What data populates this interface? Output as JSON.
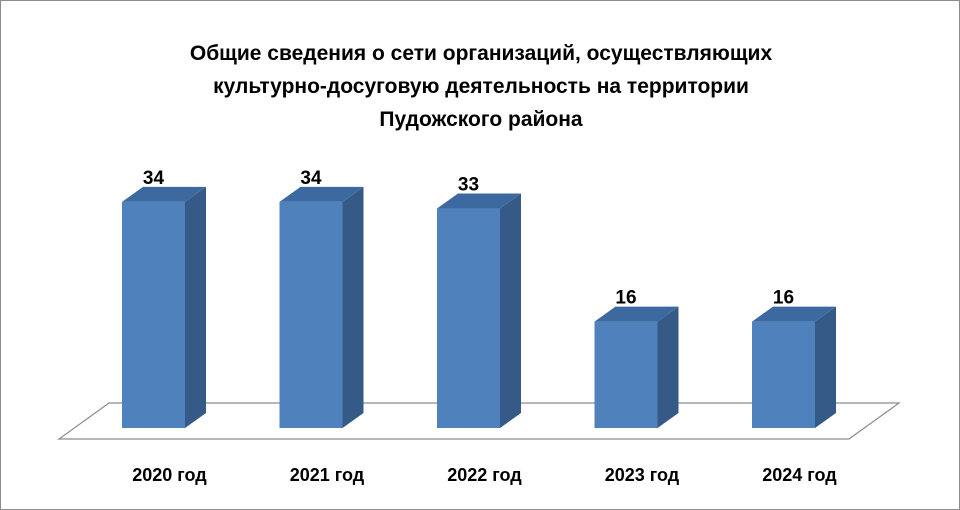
{
  "chart_data": {
    "type": "bar",
    "title_lines": [
      "Общие сведения о сети организаций, осуществляющих",
      "культурно-досуговую деятельность на территории",
      "Пудожского района"
    ],
    "categories": [
      "2020 год",
      "2021 год",
      "2022 год",
      "2023 год",
      "2024 год"
    ],
    "values": [
      34,
      34,
      33,
      16,
      16
    ],
    "ylim": [
      0,
      40
    ],
    "xlabel": "",
    "ylabel": "",
    "grid": false,
    "legend": "none",
    "style": "3d-column",
    "colors": {
      "front": "#4f81bd",
      "side": "#355a87",
      "top": "#3c6aa0",
      "floor_line": "#8c8c8c"
    }
  }
}
